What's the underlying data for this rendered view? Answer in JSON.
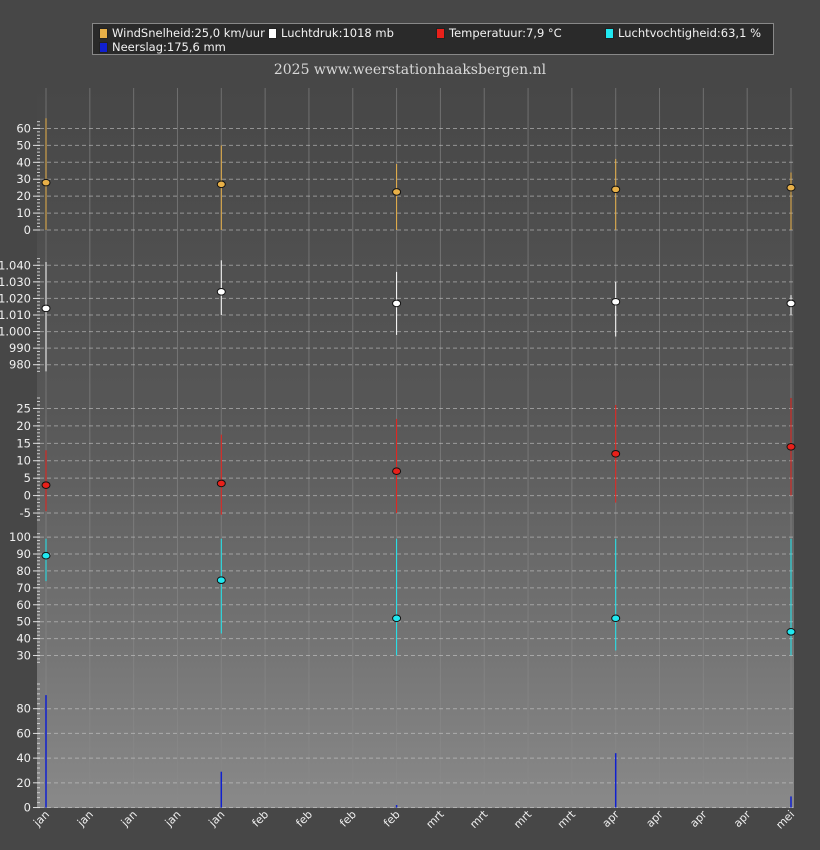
{
  "legend": [
    {
      "label": "WindSnelheid:25,0 km/uur",
      "color": "#e8b048"
    },
    {
      "label": "Luchtdruk:1018 mb",
      "color": "#ffffff"
    },
    {
      "label": "Temperatuur:7,9 °C",
      "color": "#e8201a"
    },
    {
      "label": "Luchtvochtigheid:63,1 %",
      "color": "#20e8f0"
    },
    {
      "label": "Neerslag:175,6 mm",
      "color": "#1020d0"
    }
  ],
  "subtitle": "2025  www.weerstationhaaksbergen.nl",
  "chart_data": {
    "type": "scatter",
    "x_labels": [
      "jan",
      "jan",
      "jan",
      "jan",
      "jan",
      "feb",
      "feb",
      "feb",
      "feb",
      "mrt",
      "mrt",
      "mrt",
      "mrt",
      "apr",
      "apr",
      "apr",
      "apr",
      "mei"
    ],
    "grid": true,
    "panels": [
      {
        "name": "WindSnelheid",
        "color": "#e8b048",
        "ylim": [
          0,
          65
        ],
        "ticks": [
          0,
          10,
          20,
          30,
          40,
          50,
          60
        ],
        "tick_labels": [
          "0",
          "10",
          "20",
          "30",
          "40",
          "50",
          "60"
        ],
        "points": [
          {
            "x": 0,
            "avg": 28,
            "min": 0,
            "max": 66
          },
          {
            "x": 4,
            "avg": 27,
            "min": 0,
            "max": 50
          },
          {
            "x": 8,
            "avg": 22.5,
            "min": 0,
            "max": 39
          },
          {
            "x": 13,
            "avg": 24,
            "min": 0,
            "max": 42
          },
          {
            "x": 17,
            "avg": 25,
            "min": 0,
            "max": 34
          }
        ]
      },
      {
        "name": "Luchtdruk",
        "color": "#ffffff",
        "ylim": [
          975,
          1045
        ],
        "ticks": [
          980,
          990,
          1000,
          1010,
          1020,
          1030,
          1040
        ],
        "tick_labels": [
          "980",
          "990",
          "1.000",
          "1.010",
          "1.020",
          "1.030",
          "1.040"
        ],
        "points": [
          {
            "x": 0,
            "avg": 1014,
            "min": 976,
            "max": 1042
          },
          {
            "x": 4,
            "avg": 1024,
            "min": 1010,
            "max": 1043
          },
          {
            "x": 8,
            "avg": 1017,
            "min": 998,
            "max": 1036
          },
          {
            "x": 13,
            "avg": 1018,
            "min": 997,
            "max": 1030
          },
          {
            "x": 17,
            "avg": 1017,
            "min": 1010,
            "max": 1022
          }
        ]
      },
      {
        "name": "Temperatuur",
        "color": "#e8201a",
        "ylim": [
          -7,
          28
        ],
        "ticks": [
          -5,
          0,
          5,
          10,
          15,
          20,
          25
        ],
        "tick_labels": [
          "-5",
          "0",
          "5",
          "10",
          "15",
          "20",
          "25"
        ],
        "points": [
          {
            "x": 0,
            "avg": 3,
            "min": -4.5,
            "max": 13
          },
          {
            "x": 4,
            "avg": 3.5,
            "min": -5.5,
            "max": 17.5
          },
          {
            "x": 8,
            "avg": 7,
            "min": -5,
            "max": 22
          },
          {
            "x": 13,
            "avg": 12,
            "min": -2,
            "max": 26
          },
          {
            "x": 17,
            "avg": 14,
            "min": 0,
            "max": 28
          }
        ]
      },
      {
        "name": "Luchtvochtigheid",
        "color": "#20e8f0",
        "ylim": [
          25,
          103
        ],
        "ticks": [
          30,
          40,
          50,
          60,
          70,
          80,
          90,
          100
        ],
        "tick_labels": [
          "30",
          "40",
          "50",
          "60",
          "70",
          "80",
          "90",
          "100"
        ],
        "points": [
          {
            "x": 0,
            "avg": 89,
            "min": 74,
            "max": 99
          },
          {
            "x": 4,
            "avg": 74.5,
            "min": 43,
            "max": 99
          },
          {
            "x": 8,
            "avg": 52,
            "min": 30,
            "max": 99
          },
          {
            "x": 13,
            "avg": 52,
            "min": 33,
            "max": 99
          },
          {
            "x": 17,
            "avg": 44,
            "min": 30,
            "max": 99
          }
        ]
      },
      {
        "name": "Neerslag",
        "color": "#1020d0",
        "ylim": [
          -2,
          100
        ],
        "ticks": [
          0,
          20,
          40,
          60,
          80
        ],
        "tick_labels": [
          "0",
          "20",
          "40",
          "60",
          "80"
        ],
        "bars": [
          {
            "x": 0,
            "value": 91
          },
          {
            "x": 4,
            "value": 29
          },
          {
            "x": 8,
            "value": 2
          },
          {
            "x": 13,
            "value": 44
          },
          {
            "x": 17,
            "value": 9
          }
        ]
      }
    ]
  }
}
